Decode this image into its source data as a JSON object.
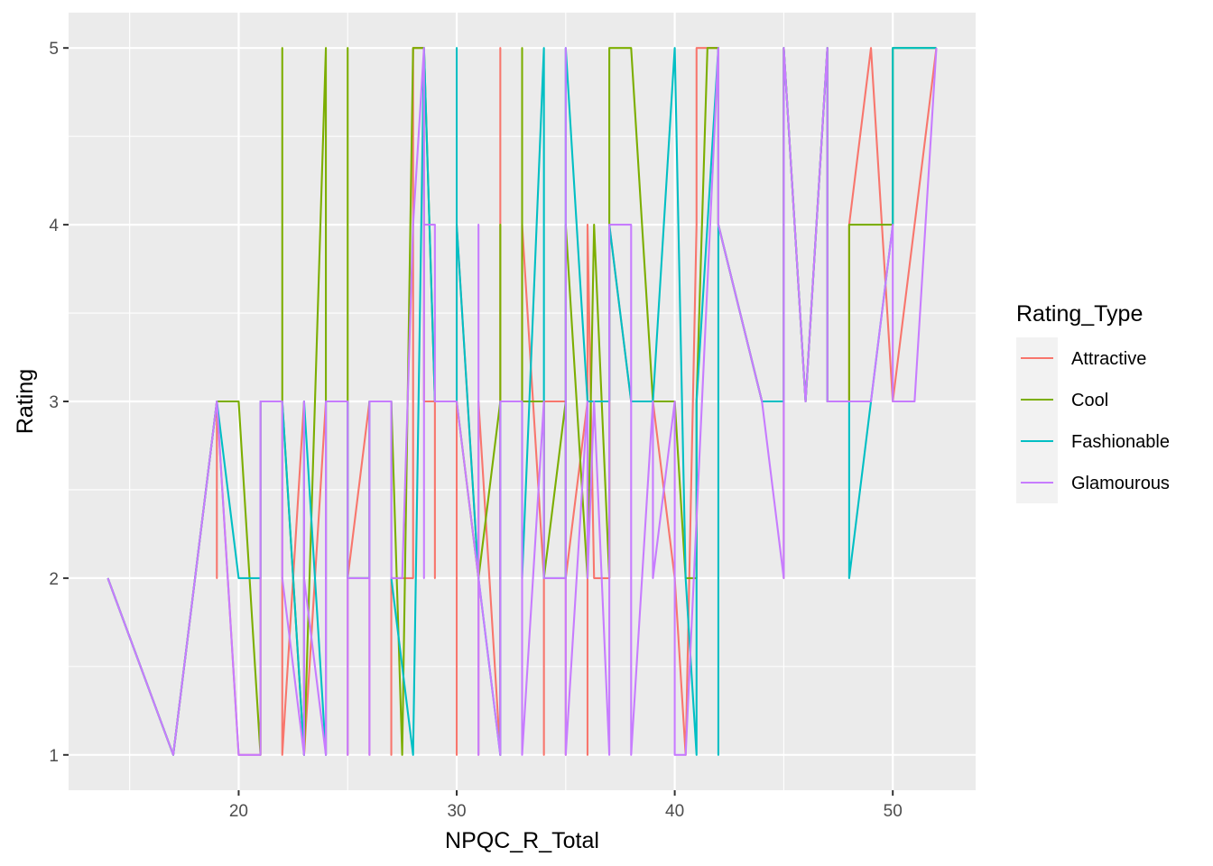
{
  "chart_data": {
    "type": "line",
    "xlabel": "NPQC_R_Total",
    "ylabel": "Rating",
    "xlim": [
      12.2,
      53.8
    ],
    "ylim": [
      0.8,
      5.2
    ],
    "x_ticks": [
      20,
      30,
      40,
      50
    ],
    "y_ticks": [
      1,
      2,
      3,
      4,
      5
    ],
    "grid": true,
    "legend": {
      "title": "Rating_Type",
      "position": "right"
    },
    "series": [
      {
        "name": "Attractive",
        "color": "#F8766D",
        "points": [
          [
            14,
            2
          ],
          [
            17,
            1
          ],
          [
            19,
            3
          ],
          [
            19,
            2
          ],
          [
            19,
            3
          ],
          [
            20,
            1
          ],
          [
            21,
            1
          ],
          [
            21,
            3
          ],
          [
            22,
            3
          ],
          [
            22,
            1
          ],
          [
            23,
            3
          ],
          [
            23,
            1
          ],
          [
            24,
            3
          ],
          [
            24,
            1
          ],
          [
            24,
            3
          ],
          [
            25,
            3
          ],
          [
            25,
            1
          ],
          [
            25,
            2
          ],
          [
            26,
            3
          ],
          [
            26,
            1
          ],
          [
            26,
            3
          ],
          [
            27,
            3
          ],
          [
            27,
            1
          ],
          [
            27,
            2
          ],
          [
            28,
            2
          ],
          [
            28,
            4
          ],
          [
            28,
            5
          ],
          [
            28.5,
            5
          ],
          [
            28.5,
            3
          ],
          [
            29,
            3
          ],
          [
            29,
            2
          ],
          [
            29,
            3
          ],
          [
            30,
            3
          ],
          [
            30,
            1
          ],
          [
            30,
            4
          ],
          [
            31,
            2
          ],
          [
            31,
            1
          ],
          [
            31,
            3
          ],
          [
            32,
            1
          ],
          [
            32,
            5
          ],
          [
            32,
            3
          ],
          [
            33,
            3
          ],
          [
            33,
            4
          ],
          [
            34,
            2
          ],
          [
            34,
            1
          ],
          [
            34,
            3
          ],
          [
            35,
            3
          ],
          [
            35,
            1
          ],
          [
            35,
            2
          ],
          [
            36,
            3
          ],
          [
            36,
            1
          ],
          [
            36,
            4
          ],
          [
            36.3,
            2
          ],
          [
            37,
            2
          ],
          [
            37,
            4
          ],
          [
            38,
            3
          ],
          [
            39,
            3
          ],
          [
            40,
            2
          ],
          [
            40.5,
            1
          ],
          [
            41,
            4
          ],
          [
            41,
            5
          ],
          [
            42,
            5
          ],
          [
            42,
            4
          ],
          [
            44,
            3
          ],
          [
            45,
            3
          ],
          [
            45,
            2
          ],
          [
            45,
            5
          ],
          [
            46,
            3
          ],
          [
            47,
            5
          ],
          [
            47,
            3
          ],
          [
            48,
            3
          ],
          [
            48,
            4
          ],
          [
            49,
            5
          ],
          [
            50,
            3
          ],
          [
            51,
            4
          ],
          [
            52,
            5
          ]
        ]
      },
      {
        "name": "Cool",
        "color": "#7CAE00",
        "points": [
          [
            14,
            2
          ],
          [
            17,
            1
          ],
          [
            19,
            3
          ],
          [
            20,
            3
          ],
          [
            21,
            1
          ],
          [
            21,
            3
          ],
          [
            22,
            3
          ],
          [
            22,
            5
          ],
          [
            22,
            3
          ],
          [
            23,
            1
          ],
          [
            24,
            5
          ],
          [
            24,
            3
          ],
          [
            25,
            3
          ],
          [
            25,
            5
          ],
          [
            25,
            2
          ],
          [
            26,
            2
          ],
          [
            26,
            3
          ],
          [
            27,
            3
          ],
          [
            27.5,
            1
          ],
          [
            28,
            5
          ],
          [
            28.5,
            5
          ],
          [
            29,
            3
          ],
          [
            30,
            3
          ],
          [
            31,
            2
          ],
          [
            32,
            3
          ],
          [
            32,
            1
          ],
          [
            32,
            4
          ],
          [
            32,
            3
          ],
          [
            33,
            3
          ],
          [
            33,
            5
          ],
          [
            33,
            3
          ],
          [
            34,
            3
          ],
          [
            34,
            2
          ],
          [
            35,
            3
          ],
          [
            35,
            2
          ],
          [
            35,
            4
          ],
          [
            36,
            2
          ],
          [
            36.3,
            4
          ],
          [
            37,
            2
          ],
          [
            37,
            5
          ],
          [
            38,
            5
          ],
          [
            39,
            3
          ],
          [
            40,
            3
          ],
          [
            40.5,
            2
          ],
          [
            41,
            2
          ],
          [
            41,
            3
          ],
          [
            41.5,
            5
          ],
          [
            42,
            5
          ],
          [
            42,
            4
          ],
          [
            44,
            3
          ],
          [
            45,
            3
          ],
          [
            45,
            5
          ],
          [
            46,
            3
          ],
          [
            47,
            5
          ],
          [
            47,
            3
          ],
          [
            48,
            3
          ],
          [
            48,
            4
          ],
          [
            50,
            4
          ],
          [
            50,
            5
          ],
          [
            51,
            5
          ],
          [
            52,
            5
          ]
        ]
      },
      {
        "name": "Fashionable",
        "color": "#00BFC4",
        "points": [
          [
            14,
            2
          ],
          [
            17,
            1
          ],
          [
            19,
            3
          ],
          [
            20,
            2
          ],
          [
            21,
            2
          ],
          [
            21,
            3
          ],
          [
            22,
            3
          ],
          [
            23,
            1
          ],
          [
            23,
            3
          ],
          [
            24,
            1
          ],
          [
            24,
            3
          ],
          [
            25,
            3
          ],
          [
            25,
            2
          ],
          [
            26,
            2
          ],
          [
            26,
            3
          ],
          [
            27,
            3
          ],
          [
            27,
            2
          ],
          [
            28,
            1
          ],
          [
            28.5,
            5
          ],
          [
            29,
            3
          ],
          [
            30,
            3
          ],
          [
            30,
            5
          ],
          [
            30,
            4
          ],
          [
            31,
            2
          ],
          [
            32,
            1
          ],
          [
            32,
            3
          ],
          [
            33,
            3
          ],
          [
            33,
            2
          ],
          [
            34,
            5
          ],
          [
            34,
            2
          ],
          [
            35,
            2
          ],
          [
            35,
            5
          ],
          [
            36,
            3
          ],
          [
            37,
            3
          ],
          [
            37,
            4
          ],
          [
            38,
            3
          ],
          [
            39,
            3
          ],
          [
            40,
            5
          ],
          [
            40.5,
            2
          ],
          [
            41,
            1
          ],
          [
            41,
            3
          ],
          [
            42,
            5
          ],
          [
            42,
            1
          ],
          [
            42,
            4
          ],
          [
            44,
            3
          ],
          [
            45,
            3
          ],
          [
            45,
            5
          ],
          [
            46,
            3
          ],
          [
            47,
            5
          ],
          [
            47,
            3
          ],
          [
            48,
            3
          ],
          [
            48,
            2
          ],
          [
            49,
            3
          ],
          [
            50,
            4
          ],
          [
            50,
            5
          ],
          [
            51,
            5
          ],
          [
            52,
            5
          ]
        ]
      },
      {
        "name": "Glamourous",
        "color": "#C77CFF",
        "points": [
          [
            14,
            2
          ],
          [
            17,
            1
          ],
          [
            19,
            3
          ],
          [
            20,
            1
          ],
          [
            21,
            1
          ],
          [
            21,
            3
          ],
          [
            22,
            3
          ],
          [
            22,
            2
          ],
          [
            23,
            1
          ],
          [
            23,
            3
          ],
          [
            23,
            2
          ],
          [
            24,
            1
          ],
          [
            24,
            3
          ],
          [
            25,
            3
          ],
          [
            25,
            1
          ],
          [
            25,
            2
          ],
          [
            26,
            2
          ],
          [
            26,
            1
          ],
          [
            26,
            3
          ],
          [
            27,
            3
          ],
          [
            27,
            2
          ],
          [
            27.5,
            2
          ],
          [
            28,
            4
          ],
          [
            28.5,
            5
          ],
          [
            28.5,
            2
          ],
          [
            28.5,
            4
          ],
          [
            29,
            4
          ],
          [
            29,
            3
          ],
          [
            30,
            3
          ],
          [
            31,
            2
          ],
          [
            31,
            1
          ],
          [
            31,
            4
          ],
          [
            31,
            2
          ],
          [
            32,
            1
          ],
          [
            32,
            3
          ],
          [
            33,
            3
          ],
          [
            33,
            1
          ],
          [
            34,
            3
          ],
          [
            34,
            2
          ],
          [
            35,
            2
          ],
          [
            35,
            5
          ],
          [
            35,
            1
          ],
          [
            36,
            3
          ],
          [
            36,
            2
          ],
          [
            36.3,
            3
          ],
          [
            37,
            1
          ],
          [
            37,
            4
          ],
          [
            38,
            4
          ],
          [
            38,
            1
          ],
          [
            39,
            3
          ],
          [
            39,
            2
          ],
          [
            40,
            3
          ],
          [
            40,
            1
          ],
          [
            40.5,
            1
          ],
          [
            42,
            5
          ],
          [
            42,
            4
          ],
          [
            44,
            3
          ],
          [
            45,
            2
          ],
          [
            45,
            5
          ],
          [
            46,
            3
          ],
          [
            47,
            5
          ],
          [
            47,
            3
          ],
          [
            48,
            3
          ],
          [
            49,
            3
          ],
          [
            50,
            4
          ],
          [
            50,
            3
          ],
          [
            51,
            3
          ],
          [
            52,
            5
          ]
        ]
      }
    ]
  }
}
